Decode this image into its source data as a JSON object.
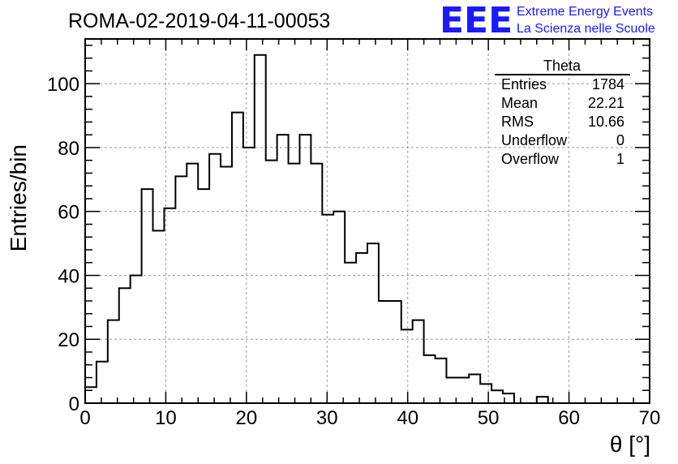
{
  "chart_data": {
    "type": "bar",
    "title": "ROMA-02-2019-04-11-00053",
    "xlabel": "θ [°]",
    "ylabel": "Entries/bin",
    "xlim": [
      0,
      70
    ],
    "ylim": [
      0,
      114
    ],
    "bin_width": 1.4,
    "bin_start": 0,
    "x_ticks": [
      0,
      10,
      20,
      30,
      40,
      50,
      60,
      70
    ],
    "y_ticks": [
      0,
      20,
      40,
      60,
      80,
      100
    ],
    "grid": true,
    "values": [
      5,
      13,
      26,
      36,
      40,
      67,
      54,
      61,
      71,
      75,
      67,
      78,
      74,
      91,
      80,
      109,
      76,
      84,
      75,
      84,
      75,
      59,
      60,
      44,
      47,
      50,
      32,
      32,
      23,
      26,
      15,
      14,
      8,
      8,
      9,
      6,
      4,
      3,
      0,
      0,
      2,
      0,
      0,
      0,
      0,
      0,
      0,
      0,
      0,
      0
    ]
  },
  "stats_box": {
    "title": "Theta",
    "rows": [
      {
        "label": "Entries",
        "value": "1784"
      },
      {
        "label": "Mean",
        "value": "22.21"
      },
      {
        "label": "RMS",
        "value": "10.66"
      },
      {
        "label": "Underflow",
        "value": "0"
      },
      {
        "label": "Overflow",
        "value": "1"
      }
    ]
  },
  "logo": {
    "mark": "EEE",
    "line1": "Extreme Energy Events",
    "line2": "La Scienza nelle Scuole"
  }
}
